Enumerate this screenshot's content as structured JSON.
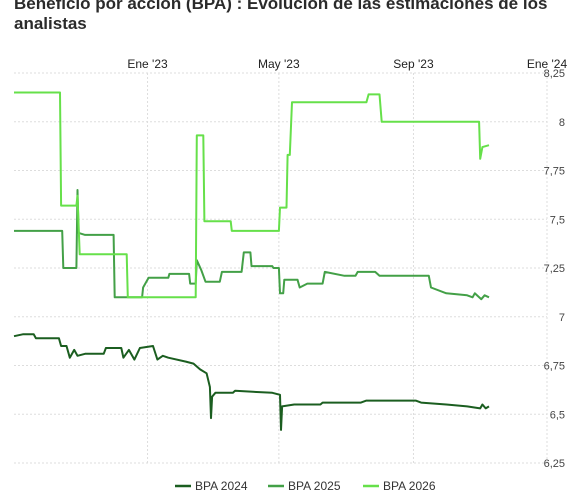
{
  "title": "Beneficio por acción (BPA) : Evolución de las estimaciones de los analistas",
  "chart_data": {
    "type": "line",
    "title": "Beneficio por acción (BPA) : Evolución de las estimaciones de los analistas",
    "x_ticks": [
      "Ene '23",
      "May '23",
      "Sep '23",
      "Ene '24"
    ],
    "y_ticks": [
      "6,25",
      "6,5",
      "6,75",
      "7",
      "7,25",
      "7,5",
      "7,75",
      "8",
      "8,25"
    ],
    "ylim": [
      6.25,
      8.25
    ],
    "xlim": [
      "2022-09-01",
      "2024-01-01"
    ],
    "grid": true,
    "legend_position": "bottom",
    "series": [
      {
        "name": "BPA 2024",
        "color": "#1b5e20",
        "points": [
          [
            "2022-09-01",
            6.9
          ],
          [
            "2022-09-09",
            6.91
          ],
          [
            "2022-09-19",
            6.91
          ],
          [
            "2022-09-21",
            6.89
          ],
          [
            "2022-10-12",
            6.89
          ],
          [
            "2022-10-14",
            6.85
          ],
          [
            "2022-10-19",
            6.85
          ],
          [
            "2022-10-22",
            6.79
          ],
          [
            "2022-10-26",
            6.83
          ],
          [
            "2022-10-29",
            6.8
          ],
          [
            "2022-11-05",
            6.81
          ],
          [
            "2022-11-22",
            6.81
          ],
          [
            "2022-11-24",
            6.84
          ],
          [
            "2022-12-08",
            6.84
          ],
          [
            "2022-12-10",
            6.79
          ],
          [
            "2022-12-15",
            6.83
          ],
          [
            "2022-12-20",
            6.78
          ],
          [
            "2022-12-25",
            6.84
          ],
          [
            "2023-01-06",
            6.85
          ],
          [
            "2023-01-10",
            6.78
          ],
          [
            "2023-01-15",
            6.8
          ],
          [
            "2023-01-20",
            6.79
          ],
          [
            "2023-02-05",
            6.77
          ],
          [
            "2023-02-12",
            6.76
          ],
          [
            "2023-02-18",
            6.73
          ],
          [
            "2023-02-24",
            6.71
          ],
          [
            "2023-02-27",
            6.64
          ],
          [
            "2023-02-28",
            6.48
          ],
          [
            "2023-03-01",
            6.59
          ],
          [
            "2023-03-04",
            6.61
          ],
          [
            "2023-03-20",
            6.61
          ],
          [
            "2023-03-22",
            6.62
          ],
          [
            "2023-04-25",
            6.61
          ],
          [
            "2023-05-02",
            6.6
          ],
          [
            "2023-05-03",
            6.42
          ],
          [
            "2023-05-04",
            6.54
          ],
          [
            "2023-05-15",
            6.55
          ],
          [
            "2023-06-08",
            6.55
          ],
          [
            "2023-06-10",
            6.56
          ],
          [
            "2023-07-15",
            6.56
          ],
          [
            "2023-07-20",
            6.57
          ],
          [
            "2023-09-03",
            6.57
          ],
          [
            "2023-09-08",
            6.56
          ],
          [
            "2023-10-01",
            6.55
          ],
          [
            "2023-10-20",
            6.54
          ],
          [
            "2023-11-01",
            6.53
          ],
          [
            "2023-11-03",
            6.55
          ],
          [
            "2023-11-06",
            6.53
          ],
          [
            "2023-11-09",
            6.54
          ]
        ]
      },
      {
        "name": "BPA 2025",
        "color": "#43a047",
        "points": [
          [
            "2022-09-01",
            7.44
          ],
          [
            "2022-10-15",
            7.44
          ],
          [
            "2022-10-16",
            7.25
          ],
          [
            "2022-10-28",
            7.25
          ],
          [
            "2022-10-29",
            7.65
          ],
          [
            "2022-10-30",
            7.43
          ],
          [
            "2022-11-05",
            7.42
          ],
          [
            "2022-12-01",
            7.42
          ],
          [
            "2022-12-02",
            7.1
          ],
          [
            "2022-12-27",
            7.1
          ],
          [
            "2022-12-28",
            7.15
          ],
          [
            "2023-01-02",
            7.2
          ],
          [
            "2023-01-20",
            7.2
          ],
          [
            "2023-01-21",
            7.22
          ],
          [
            "2023-02-08",
            7.22
          ],
          [
            "2023-02-09",
            7.17
          ],
          [
            "2023-02-14",
            7.17
          ],
          [
            "2023-02-15",
            7.29
          ],
          [
            "2023-02-19",
            7.24
          ],
          [
            "2023-02-23",
            7.18
          ],
          [
            "2023-03-08",
            7.18
          ],
          [
            "2023-03-10",
            7.23
          ],
          [
            "2023-03-28",
            7.23
          ],
          [
            "2023-03-30",
            7.33
          ],
          [
            "2023-04-05",
            7.33
          ],
          [
            "2023-04-06",
            7.26
          ],
          [
            "2023-04-25",
            7.26
          ],
          [
            "2023-04-26",
            7.25
          ],
          [
            "2023-05-01",
            7.25
          ],
          [
            "2023-05-02",
            7.12
          ],
          [
            "2023-05-05",
            7.12
          ],
          [
            "2023-05-06",
            7.19
          ],
          [
            "2023-05-18",
            7.19
          ],
          [
            "2023-05-20",
            7.15
          ],
          [
            "2023-05-27",
            7.17
          ],
          [
            "2023-06-10",
            7.17
          ],
          [
            "2023-06-12",
            7.23
          ],
          [
            "2023-06-30",
            7.21
          ],
          [
            "2023-07-10",
            7.21
          ],
          [
            "2023-07-12",
            7.23
          ],
          [
            "2023-07-28",
            7.23
          ],
          [
            "2023-08-01",
            7.21
          ],
          [
            "2023-09-15",
            7.21
          ],
          [
            "2023-09-17",
            7.15
          ],
          [
            "2023-10-01",
            7.12
          ],
          [
            "2023-10-20",
            7.11
          ],
          [
            "2023-10-25",
            7.1
          ],
          [
            "2023-10-27",
            7.12
          ],
          [
            "2023-11-02",
            7.09
          ],
          [
            "2023-11-05",
            7.11
          ],
          [
            "2023-11-09",
            7.1
          ]
        ]
      },
      {
        "name": "BPA 2026",
        "color": "#66e04a",
        "points": [
          [
            "2022-09-01",
            8.15
          ],
          [
            "2022-10-13",
            8.15
          ],
          [
            "2022-10-14",
            7.57
          ],
          [
            "2022-10-28",
            7.57
          ],
          [
            "2022-10-29",
            7.62
          ],
          [
            "2022-10-31",
            7.32
          ],
          [
            "2022-12-13",
            7.32
          ],
          [
            "2022-12-14",
            7.1
          ],
          [
            "2023-02-14",
            7.1
          ],
          [
            "2023-02-15",
            7.93
          ],
          [
            "2023-02-21",
            7.93
          ],
          [
            "2023-02-22",
            7.49
          ],
          [
            "2023-03-18",
            7.49
          ],
          [
            "2023-03-19",
            7.44
          ],
          [
            "2023-05-01",
            7.44
          ],
          [
            "2023-05-02",
            7.56
          ],
          [
            "2023-05-08",
            7.56
          ],
          [
            "2023-05-09",
            7.83
          ],
          [
            "2023-05-11",
            7.83
          ],
          [
            "2023-05-13",
            8.1
          ],
          [
            "2023-07-20",
            8.1
          ],
          [
            "2023-07-22",
            8.14
          ],
          [
            "2023-08-01",
            8.14
          ],
          [
            "2023-08-03",
            8.0
          ],
          [
            "2023-10-31",
            8.0
          ],
          [
            "2023-11-01",
            7.81
          ],
          [
            "2023-11-03",
            7.87
          ],
          [
            "2023-11-09",
            7.88
          ]
        ]
      }
    ]
  }
}
